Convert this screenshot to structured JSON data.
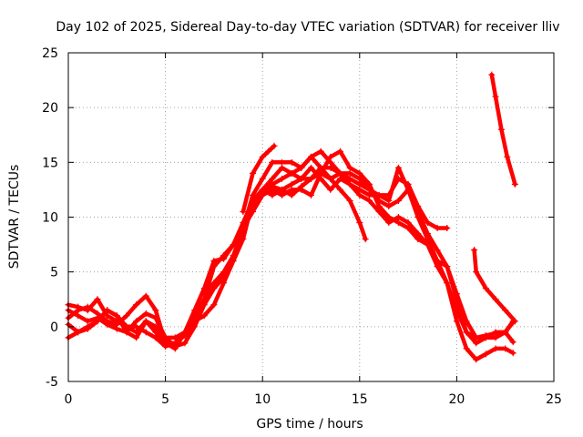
{
  "chart_data": {
    "type": "scatter",
    "title": "Day 102 of 2025, Sidereal Day-to-day VTEC variation (SDTVAR) for receiver lliv",
    "xlabel": "GPS time / hours",
    "ylabel": "SDTVAR / TECUs",
    "xlim": [
      0,
      25
    ],
    "ylim": [
      -5,
      25
    ],
    "xticks": [
      0,
      5,
      10,
      15,
      20,
      25
    ],
    "yticks": [
      -5,
      0,
      5,
      10,
      15,
      20,
      25
    ],
    "grid": true,
    "marker": "+",
    "color": "#ff0000",
    "series": [
      {
        "name": "trace-1",
        "points": [
          [
            0,
            0.8
          ],
          [
            0.5,
            1.5
          ],
          [
            1,
            1.8
          ],
          [
            1.5,
            1.2
          ],
          [
            2,
            0.5
          ],
          [
            2.5,
            0.2
          ],
          [
            3,
            1.0
          ],
          [
            3.5,
            2.0
          ],
          [
            4,
            2.8
          ],
          [
            4.5,
            1.5
          ],
          [
            5,
            -1.5
          ],
          [
            5.5,
            -2.0
          ],
          [
            6,
            -0.5
          ],
          [
            6.5,
            1.5
          ],
          [
            7,
            3.5
          ],
          [
            7.5,
            6.0
          ],
          [
            8,
            6.2
          ],
          [
            8.5,
            7.5
          ],
          [
            9,
            9.5
          ],
          [
            9.5,
            11.5
          ],
          [
            10,
            12.5
          ],
          [
            10.5,
            12.8
          ],
          [
            11,
            12.5
          ],
          [
            11.5,
            12.0
          ],
          [
            12,
            12.8
          ],
          [
            12.5,
            13.5
          ],
          [
            13,
            14.0
          ],
          [
            13.5,
            13.5
          ],
          [
            14,
            12.5
          ],
          [
            14.5,
            11.5
          ],
          [
            15,
            9.5
          ],
          [
            15.3,
            8.0
          ]
        ]
      },
      {
        "name": "trace-2",
        "points": [
          [
            0,
            1.5
          ],
          [
            0.5,
            1.0
          ],
          [
            1,
            0.5
          ],
          [
            1.5,
            0.8
          ],
          [
            2,
            0.2
          ],
          [
            2.5,
            -0.2
          ],
          [
            3,
            -0.5
          ],
          [
            3.5,
            0.5
          ],
          [
            4,
            1.2
          ],
          [
            4.5,
            0.8
          ],
          [
            5,
            -1.0
          ],
          [
            5.5,
            -1.8
          ],
          [
            6,
            -1.5
          ],
          [
            6.5,
            0.0
          ],
          [
            7,
            2.0
          ],
          [
            7.5,
            3.5
          ],
          [
            8,
            4.5
          ],
          [
            8.5,
            6.5
          ],
          [
            9,
            9.0
          ],
          [
            9.5,
            12.0
          ],
          [
            10,
            13.5
          ],
          [
            10.5,
            15.0
          ],
          [
            11,
            15.0
          ],
          [
            11.5,
            15.0
          ],
          [
            12,
            14.5
          ],
          [
            12.5,
            15.5
          ],
          [
            13,
            16.0
          ],
          [
            13.5,
            15.0
          ],
          [
            14,
            14.0
          ],
          [
            14.5,
            14.0
          ],
          [
            15,
            13.5
          ],
          [
            15.5,
            12.5
          ],
          [
            16,
            12.0
          ],
          [
            16.5,
            12.0
          ],
          [
            17,
            13.5
          ],
          [
            17.5,
            13.0
          ],
          [
            18,
            11.0
          ],
          [
            18.5,
            9.5
          ],
          [
            19,
            9.0
          ],
          [
            19.5,
            9.0
          ]
        ]
      },
      {
        "name": "trace-3",
        "points": [
          [
            0,
            0.2
          ],
          [
            0.5,
            -0.5
          ],
          [
            1,
            -0.2
          ],
          [
            1.5,
            0.5
          ],
          [
            2,
            1.5
          ],
          [
            2.5,
            1.0
          ],
          [
            3,
            -0.5
          ],
          [
            3.5,
            -1.0
          ],
          [
            4,
            0.5
          ],
          [
            4.5,
            -0.5
          ],
          [
            5,
            -1.5
          ],
          [
            5.5,
            -1.5
          ],
          [
            6,
            -0.5
          ],
          [
            6.5,
            0.5
          ],
          [
            7,
            1.0
          ],
          [
            7.5,
            2.0
          ],
          [
            8,
            4.0
          ],
          [
            8.5,
            6.0
          ],
          [
            9,
            8.0
          ],
          [
            9.5,
            11.5
          ],
          [
            10,
            12.5
          ],
          [
            10.5,
            12.0
          ],
          [
            11,
            12.5
          ],
          [
            11.5,
            13.0
          ],
          [
            12,
            13.5
          ],
          [
            12.5,
            13.5
          ],
          [
            13,
            14.5
          ],
          [
            13.5,
            14.5
          ],
          [
            14,
            14.0
          ],
          [
            14.5,
            13.0
          ],
          [
            15,
            12.0
          ],
          [
            15.5,
            11.5
          ],
          [
            16,
            10.5
          ],
          [
            16.5,
            9.5
          ],
          [
            17,
            10.0
          ],
          [
            17.5,
            9.5
          ],
          [
            18,
            8.5
          ],
          [
            18.5,
            7.5
          ],
          [
            19,
            6.0
          ],
          [
            19.5,
            5.5
          ],
          [
            20,
            3.0
          ],
          [
            20.5,
            0.5
          ],
          [
            21,
            -1.0
          ],
          [
            21.5,
            -0.8
          ],
          [
            22,
            -0.6
          ],
          [
            22.5,
            -0.5
          ],
          [
            22.9,
            0.4
          ]
        ]
      },
      {
        "name": "trace-4",
        "points": [
          [
            0,
            2.0
          ],
          [
            0.5,
            1.8
          ],
          [
            1,
            1.5
          ],
          [
            1.5,
            2.5
          ],
          [
            2,
            1.0
          ],
          [
            2.5,
            0.5
          ],
          [
            3,
            0.0
          ],
          [
            3.5,
            0.0
          ],
          [
            4,
            -0.5
          ],
          [
            4.5,
            -1.0
          ],
          [
            5,
            -1.8
          ],
          [
            5.5,
            -1.5
          ],
          [
            6,
            -0.8
          ],
          [
            6.5,
            0.5
          ],
          [
            7,
            2.5
          ],
          [
            7.5,
            5.5
          ],
          [
            8,
            6.5
          ],
          [
            8.5,
            7.5
          ],
          [
            9,
            9.0
          ],
          [
            9.5,
            10.5
          ],
          [
            10,
            12.0
          ],
          [
            10.5,
            13.0
          ],
          [
            11,
            13.5
          ],
          [
            11.5,
            14.0
          ],
          [
            12,
            13.5
          ],
          [
            12.5,
            14.5
          ],
          [
            13,
            13.5
          ],
          [
            13.5,
            12.5
          ],
          [
            14,
            13.5
          ],
          [
            14.5,
            13.0
          ],
          [
            15,
            12.5
          ],
          [
            15.5,
            12.0
          ],
          [
            16,
            12.0
          ],
          [
            16.5,
            11.5
          ],
          [
            17,
            14.5
          ],
          [
            17.5,
            12.5
          ],
          [
            18,
            10.0
          ],
          [
            18.5,
            8.0
          ],
          [
            19,
            6.0
          ],
          [
            19.5,
            4.0
          ],
          [
            20,
            1.5
          ],
          [
            20.5,
            -0.5
          ],
          [
            21,
            -1.0
          ],
          [
            21.5,
            -1.0
          ],
          [
            22,
            -0.5
          ],
          [
            22.5,
            -0.5
          ],
          [
            22.9,
            -1.4
          ]
        ]
      },
      {
        "name": "trace-5",
        "points": [
          [
            0,
            -1.0
          ],
          [
            0.5,
            -0.5
          ],
          [
            1,
            0.0
          ],
          [
            1.5,
            0.5
          ],
          [
            2,
            1.5
          ],
          [
            2.5,
            1.0
          ],
          [
            3,
            0.0
          ],
          [
            3.5,
            -0.5
          ],
          [
            4,
            0.5
          ],
          [
            4.5,
            0.0
          ],
          [
            5,
            -1.0
          ],
          [
            5.5,
            -1.0
          ],
          [
            6,
            -0.5
          ],
          [
            6.5,
            1.0
          ],
          [
            7,
            2.5
          ],
          [
            7.5,
            4.0
          ],
          [
            8,
            5.0
          ],
          [
            8.5,
            6.5
          ],
          [
            9,
            8.5
          ],
          [
            9.5,
            11.0
          ],
          [
            10,
            12.5
          ],
          [
            10.5,
            13.5
          ],
          [
            11,
            14.5
          ],
          [
            11.5,
            14.0
          ],
          [
            12,
            14.5
          ],
          [
            12.5,
            15.5
          ],
          [
            13,
            14.5
          ],
          [
            13.5,
            13.5
          ],
          [
            14,
            14.0
          ],
          [
            14.5,
            13.5
          ],
          [
            15,
            13.0
          ],
          [
            15.5,
            12.5
          ],
          [
            16,
            11.5
          ],
          [
            16.5,
            11.0
          ],
          [
            17,
            11.5
          ],
          [
            17.5,
            12.5
          ],
          [
            18,
            10.5
          ],
          [
            18.5,
            8.5
          ],
          [
            19,
            7.0
          ],
          [
            19.5,
            5.5
          ],
          [
            20,
            2.5
          ],
          [
            20.5,
            -0.5
          ],
          [
            21,
            -1.5
          ],
          [
            21.5,
            -1.0
          ],
          [
            22,
            -1.0
          ],
          [
            22.5,
            -0.5
          ],
          [
            22.9,
            0.5
          ]
        ]
      },
      {
        "name": "trace-6",
        "points": [
          [
            10,
            12.0
          ],
          [
            10.5,
            12.5
          ],
          [
            11,
            12.0
          ],
          [
            11.5,
            12.5
          ],
          [
            12,
            12.5
          ],
          [
            12.5,
            12.0
          ],
          [
            13,
            14.0
          ],
          [
            13.5,
            15.5
          ],
          [
            14,
            16.0
          ],
          [
            14.5,
            14.5
          ],
          [
            15,
            14.0
          ],
          [
            15.5,
            13.0
          ],
          [
            16,
            11.0
          ],
          [
            16.5,
            10.0
          ],
          [
            17,
            9.5
          ],
          [
            17.5,
            9.0
          ],
          [
            18,
            8.0
          ],
          [
            18.5,
            7.5
          ],
          [
            19,
            5.5
          ],
          [
            19.5,
            4.0
          ],
          [
            20,
            0.5
          ],
          [
            20.5,
            -2.0
          ],
          [
            21,
            -3.0
          ],
          [
            21.5,
            -2.5
          ],
          [
            22,
            -2.0
          ],
          [
            22.5,
            -2.0
          ],
          [
            22.9,
            -2.4
          ]
        ]
      },
      {
        "name": "trace-7",
        "points": [
          [
            9,
            10.5
          ],
          [
            9.5,
            14.0
          ],
          [
            10,
            15.5
          ],
          [
            10.3,
            16.0
          ],
          [
            10.6,
            16.5
          ]
        ]
      },
      {
        "name": "trace-8",
        "points": [
          [
            20.9,
            7.0
          ],
          [
            21,
            5.0
          ],
          [
            21.5,
            3.5
          ],
          [
            22,
            2.5
          ],
          [
            22.5,
            1.5
          ],
          [
            23,
            0.5
          ]
        ]
      },
      {
        "name": "trace-9",
        "points": [
          [
            21.8,
            23.0
          ],
          [
            22,
            21.0
          ],
          [
            22.3,
            18.0
          ],
          [
            22.6,
            15.5
          ],
          [
            23,
            13.0
          ]
        ]
      }
    ]
  }
}
